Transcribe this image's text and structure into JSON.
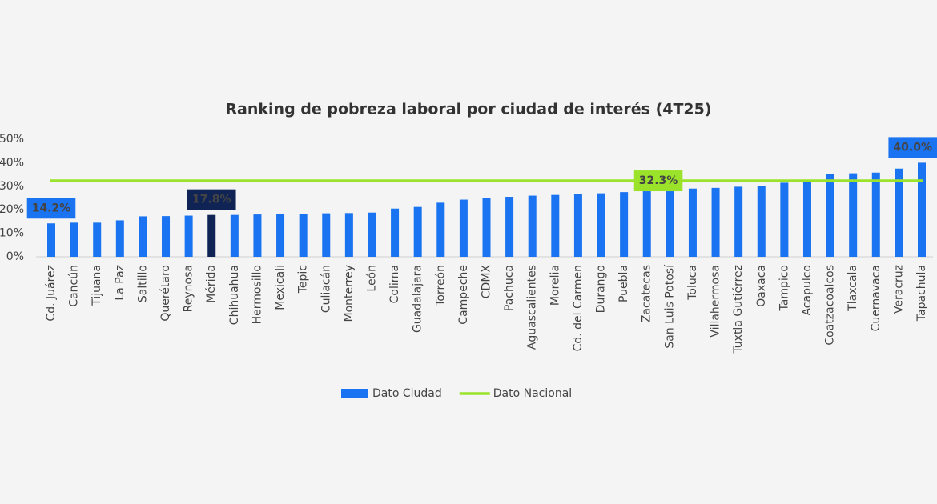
{
  "chart_data": {
    "type": "bar",
    "title": "Ranking de pobreza laboral por ciudad de interés (4T25)",
    "categories": [
      "Cd. Juárez",
      "Cancún",
      "Tijuana",
      "La Paz",
      "Saltillo",
      "Querétaro",
      "Reynosa",
      "Mérida",
      "Chihuahua",
      "Hermosillo",
      "Mexicali",
      "Tepic",
      "Culiacán",
      "Monterrey",
      "León",
      "Colima",
      "Guadalajara",
      "Torreón",
      "Campeche",
      "CDMX",
      "Pachuca",
      "Aguascalientes",
      "Morelia",
      "Cd. del Carmen",
      "Durango",
      "Puebla",
      "Zacatecas",
      "San Luis Potosí",
      "Toluca",
      "Villahermosa",
      "Tuxtla Gutiérrez",
      "Oaxaca",
      "Tampico",
      "Acapulco",
      "Coatzacoalcos",
      "Tlaxcala",
      "Cuernavaca",
      "Veracruz",
      "Tapachula"
    ],
    "series": [
      {
        "name": "Dato Ciudad",
        "color": "#1a73f0",
        "colors": [
          "#1a73f0",
          "#1a73f0",
          "#1a73f0",
          "#1a73f0",
          "#1a73f0",
          "#1a73f0",
          "#1a73f0",
          "#0f2454",
          "#1a73f0",
          "#1a73f0",
          "#1a73f0",
          "#1a73f0",
          "#1a73f0",
          "#1a73f0",
          "#1a73f0",
          "#1a73f0",
          "#1a73f0",
          "#1a73f0",
          "#1a73f0",
          "#1a73f0",
          "#1a73f0",
          "#1a73f0",
          "#1a73f0",
          "#1a73f0",
          "#1a73f0",
          "#1a73f0",
          "#1a73f0",
          "#1a73f0",
          "#1a73f0",
          "#1a73f0",
          "#1a73f0",
          "#1a73f0",
          "#1a73f0",
          "#1a73f0",
          "#1a73f0",
          "#1a73f0",
          "#1a73f0",
          "#1a73f0",
          "#1a73f0"
        ],
        "values": [
          14.2,
          14.5,
          14.5,
          15.5,
          17.2,
          17.3,
          17.5,
          17.8,
          17.8,
          18.0,
          18.2,
          18.3,
          18.5,
          18.6,
          18.8,
          20.5,
          21.2,
          23.0,
          24.3,
          25.0,
          25.5,
          26.0,
          26.3,
          26.8,
          27.0,
          27.5,
          28.0,
          28.5,
          29.0,
          29.3,
          29.8,
          30.2,
          31.5,
          31.8,
          35.2,
          35.5,
          35.8,
          37.5,
          40.0
        ],
        "value_labels": [
          "14.2%",
          null,
          null,
          null,
          null,
          null,
          null,
          "17.8%",
          null,
          null,
          null,
          null,
          null,
          null,
          null,
          null,
          null,
          null,
          null,
          null,
          null,
          null,
          null,
          null,
          null,
          null,
          null,
          null,
          null,
          null,
          null,
          null,
          null,
          null,
          null,
          null,
          null,
          null,
          "40.0%"
        ]
      },
      {
        "name": "Dato Nacional",
        "type": "line",
        "color": "#9be32a",
        "value": 32.3,
        "value_label": "32.3%"
      }
    ],
    "ylim": [
      0,
      50
    ],
    "yticks": [
      {
        "value": 0,
        "label": "0%"
      },
      {
        "value": 10,
        "label": "10%"
      },
      {
        "value": 20,
        "label": "20%"
      },
      {
        "value": 30,
        "label": "30%"
      },
      {
        "value": 40,
        "label": "40%"
      },
      {
        "value": 50,
        "label": "50%"
      }
    ],
    "legend": "bottom"
  }
}
